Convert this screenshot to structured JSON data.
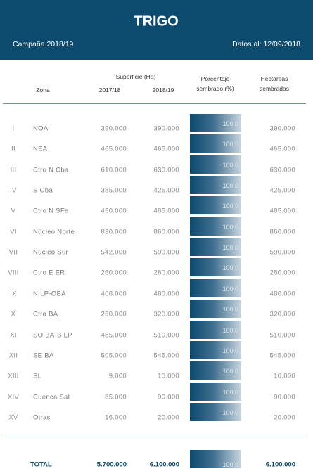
{
  "header": {
    "title": "TRIGO",
    "campaign": "Campaña 2018/19",
    "date": "Datos al: 12/09/2018"
  },
  "table": {
    "group_header": "Superficie (Ha)",
    "columns": [
      "Zona",
      "2017/18",
      "2018/19",
      "Porcentaje sembrado (%)",
      "Hectareas sembradas"
    ],
    "rows": [
      [
        "I",
        "NOA",
        "390.000",
        "390.000",
        "100,0",
        "390.000"
      ],
      [
        "II",
        "NEA",
        "465.000",
        "465.000",
        "100,0",
        "465.000"
      ],
      [
        "III",
        "Ctro N Cba",
        "610.000",
        "630.000",
        "100,0",
        "630.000"
      ],
      [
        "IV",
        "S Cba",
        "385.000",
        "425.000",
        "100,0",
        "425.000"
      ],
      [
        "V",
        "Ctro N SFe",
        "450.000",
        "485.000",
        "100,0",
        "485.000"
      ],
      [
        "VI",
        "Núcleo Norte",
        "830.000",
        "860.000",
        "100,0",
        "860.000"
      ],
      [
        "VII",
        "Núcleo Sur",
        "542.000",
        "590.000",
        "100,0",
        "590.000"
      ],
      [
        "VIII",
        "Ctro E ER",
        "260.000",
        "280.000",
        "100,0",
        "280.000"
      ],
      [
        "IX",
        "N LP-OBA",
        "408.000",
        "480.000",
        "100,0",
        "480.000"
      ],
      [
        "X",
        "Ctro BA",
        "260.000",
        "320.000",
        "100,0",
        "320.000"
      ],
      [
        "XI",
        "SO BA-S LP",
        "485.000",
        "510.000",
        "100,0",
        "510.000"
      ],
      [
        "XII",
        "SE BA",
        "505.000",
        "545.000",
        "100,0",
        "545.000"
      ],
      [
        "XIII",
        "SL",
        "9.000",
        "10.000",
        "100,0",
        "10.000"
      ],
      [
        "XIV",
        "Cuenca Sal",
        "85.000",
        "90.000",
        "100,0",
        "90.000"
      ],
      [
        "XV",
        "Otras",
        "16.000",
        "20.000",
        "100,0",
        "20.000"
      ]
    ],
    "total": [
      "TOTAL",
      "5.700.000",
      "6.100.000",
      "100,0",
      "6.100.000"
    ]
  }
}
